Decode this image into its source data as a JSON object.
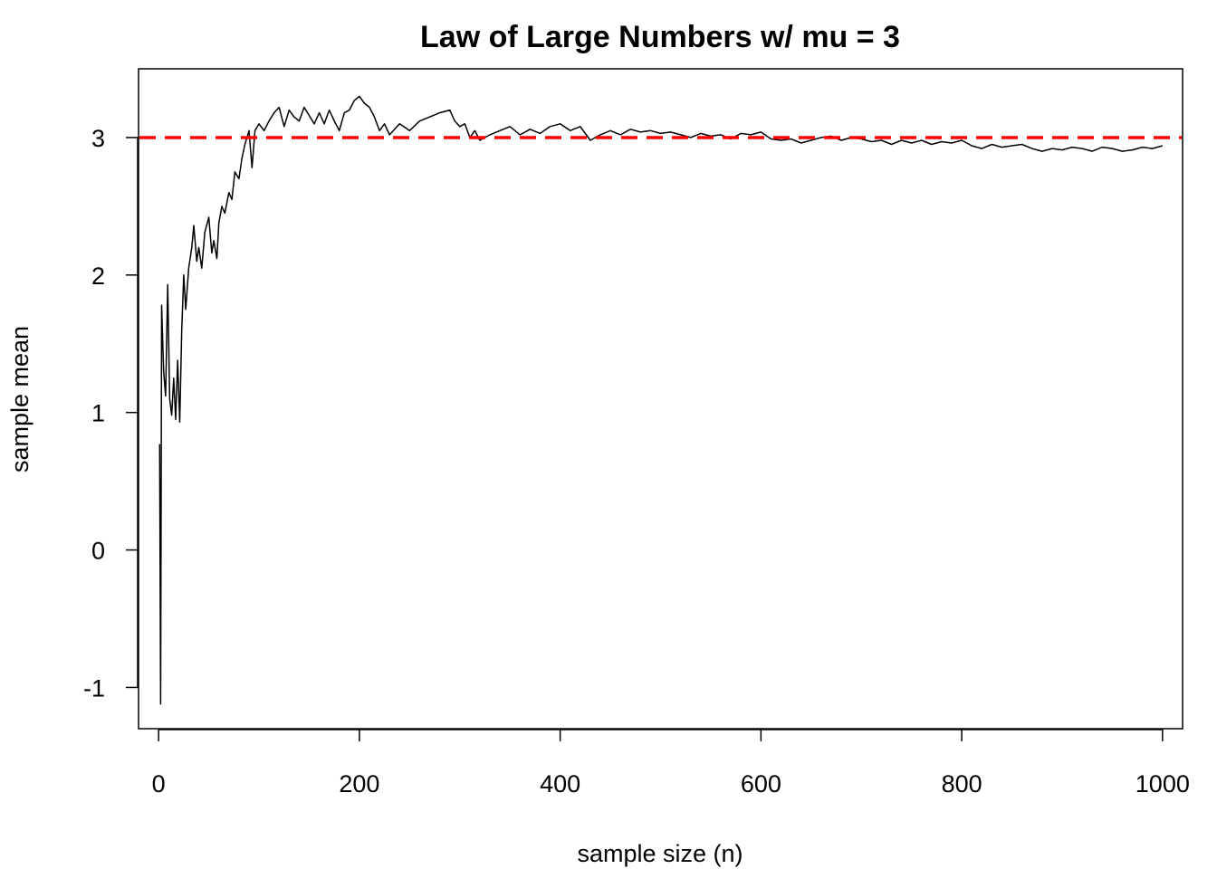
{
  "chart_data": {
    "type": "line",
    "title": "Law of Large Numbers w/ mu = 3",
    "xlabel": "sample size (n)",
    "ylabel": "sample mean",
    "xlim": [
      -20,
      1020
    ],
    "ylim": [
      -1.3,
      3.5
    ],
    "x_ticks": [
      0,
      200,
      400,
      600,
      800,
      1000
    ],
    "x_tick_labels": [
      "0",
      "200",
      "400",
      "600",
      "800",
      "1000"
    ],
    "y_ticks": [
      -1,
      0,
      1,
      2,
      3
    ],
    "y_tick_labels": [
      "-1",
      "0",
      "1",
      "2",
      "3"
    ],
    "grid": false,
    "box": true,
    "series": [
      {
        "color": "#000000",
        "dash": "solid",
        "x": [
          1,
          2,
          3,
          5,
          7,
          9,
          11,
          13,
          15,
          17,
          19,
          21,
          23,
          25,
          27,
          30,
          33,
          35,
          38,
          40,
          43,
          46,
          50,
          53,
          55,
          58,
          60,
          63,
          66,
          70,
          73,
          76,
          80,
          83,
          86,
          90,
          93,
          96,
          100,
          105,
          110,
          115,
          120,
          125,
          130,
          135,
          140,
          145,
          150,
          155,
          160,
          165,
          170,
          175,
          180,
          185,
          190,
          195,
          200,
          205,
          210,
          215,
          220,
          225,
          230,
          240,
          250,
          260,
          270,
          280,
          290,
          295,
          300,
          305,
          310,
          315,
          320,
          330,
          340,
          350,
          360,
          370,
          380,
          390,
          400,
          410,
          420,
          430,
          440,
          450,
          460,
          470,
          480,
          490,
          500,
          510,
          520,
          530,
          540,
          550,
          560,
          570,
          580,
          590,
          600,
          610,
          620,
          630,
          640,
          650,
          660,
          670,
          680,
          690,
          700,
          710,
          720,
          730,
          740,
          750,
          760,
          770,
          780,
          790,
          800,
          810,
          820,
          830,
          840,
          850,
          860,
          870,
          880,
          890,
          900,
          910,
          920,
          930,
          940,
          950,
          960,
          970,
          980,
          990,
          1000
        ],
        "y": [
          0.77,
          -1.12,
          1.78,
          1.3,
          1.12,
          1.93,
          1.1,
          0.98,
          1.25,
          0.95,
          1.38,
          0.93,
          1.6,
          2.0,
          1.75,
          2.05,
          2.2,
          2.36,
          2.1,
          2.2,
          2.05,
          2.31,
          2.42,
          2.16,
          2.25,
          2.12,
          2.38,
          2.5,
          2.45,
          2.6,
          2.55,
          2.75,
          2.7,
          2.85,
          2.95,
          3.05,
          2.78,
          3.05,
          3.1,
          3.05,
          3.12,
          3.18,
          3.22,
          3.08,
          3.2,
          3.15,
          3.12,
          3.22,
          3.16,
          3.1,
          3.18,
          3.1,
          3.2,
          3.12,
          3.05,
          3.18,
          3.2,
          3.27,
          3.3,
          3.25,
          3.22,
          3.15,
          3.05,
          3.1,
          3.02,
          3.1,
          3.05,
          3.12,
          3.15,
          3.18,
          3.2,
          3.12,
          3.08,
          3.1,
          3.0,
          3.05,
          2.98,
          3.02,
          3.05,
          3.08,
          3.02,
          3.06,
          3.03,
          3.08,
          3.1,
          3.05,
          3.08,
          2.98,
          3.02,
          3.05,
          3.02,
          3.06,
          3.04,
          3.05,
          3.03,
          3.04,
          3.02,
          3.0,
          3.03,
          3.01,
          3.02,
          2.99,
          3.03,
          3.02,
          3.04,
          2.99,
          2.98,
          2.99,
          2.96,
          2.98,
          3.0,
          3.01,
          2.98,
          3.0,
          2.99,
          2.97,
          2.98,
          2.95,
          2.98,
          2.96,
          2.98,
          2.95,
          2.97,
          2.96,
          2.98,
          2.94,
          2.92,
          2.95,
          2.93,
          2.94,
          2.95,
          2.92,
          2.9,
          2.92,
          2.91,
          2.93,
          2.92,
          2.9,
          2.93,
          2.92,
          2.9,
          2.91,
          2.93,
          2.92,
          2.94
        ]
      }
    ],
    "reference_lines": [
      {
        "y": 3,
        "color": "#ff0000",
        "dash": "dashed"
      }
    ]
  }
}
